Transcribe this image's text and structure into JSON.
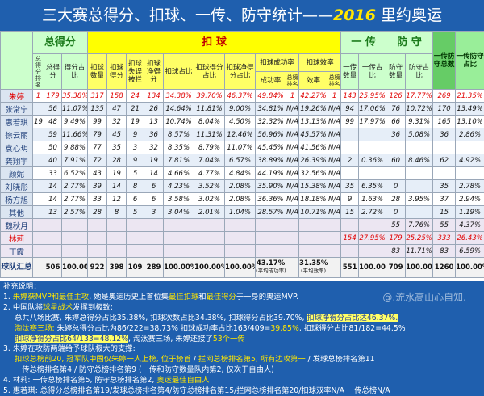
{
  "title": {
    "main": "三大赛总得分、扣球、一传、防守统计——",
    "year": "2016",
    "place": " 里约奥运"
  },
  "table": {
    "header": {
      "groups": [
        "总得分",
        "扣  球",
        "一 传",
        "防 守",
        "一传防守总数",
        "一传防守占比"
      ],
      "columns": [
        "总得分排名",
        "总得分",
        "得分占比",
        "扣球数量",
        "扣球得分",
        "扣球失误被拦",
        "扣球净得分",
        "扣球占比",
        "扣球得分占比",
        "扣球净得分占比",
        "扣球成功率",
        "扣球效率",
        "成功率",
        "总榜排名",
        "效率",
        "总榜排名",
        "一传数量",
        "一传占比",
        "防守数量",
        "防守占比"
      ]
    },
    "rows": [
      {
        "name": "朱婷",
        "color": "#e00000",
        "cells": [
          1,
          179,
          "35.38%",
          317,
          158,
          24,
          134,
          "34.38%",
          "39.70%",
          "46.37%",
          "49.84%",
          1,
          "42.27%",
          1,
          143,
          "25.95%",
          126,
          "17.77%",
          269,
          "21.35%"
        ]
      },
      {
        "name": "张常宁",
        "cells": [
          null,
          56,
          "11.07%",
          135,
          47,
          21,
          26,
          "14.64%",
          "11.81%",
          "9.00%",
          "34.81%",
          "N/A",
          "19.26%",
          "N/A",
          94,
          "17.06%",
          76,
          "10.72%",
          170,
          "13.49%"
        ]
      },
      {
        "name": "惠若琪",
        "cells": [
          19,
          48,
          "9.49%",
          99,
          32,
          19,
          13,
          "10.74%",
          "8.04%",
          "4.50%",
          "32.32%",
          "N/A",
          "13.13%",
          "N/A",
          99,
          "17.97%",
          66,
          "9.31%",
          165,
          "13.10%"
        ]
      },
      {
        "name": "徐云丽",
        "cells": [
          null,
          59,
          "11.66%",
          79,
          45,
          9,
          36,
          "8.57%",
          "11.31%",
          "12.46%",
          "56.96%",
          "N/A",
          "45.57%",
          "N/A",
          null,
          null,
          36,
          "5.08%",
          36,
          "2.86%"
        ]
      },
      {
        "name": "袁心玥",
        "cells": [
          null,
          50,
          "9.88%",
          77,
          35,
          3,
          32,
          "8.35%",
          "8.79%",
          "11.07%",
          "45.45%",
          "N/A",
          "41.56%",
          "N/A",
          null,
          null,
          null,
          null,
          null,
          null
        ]
      },
      {
        "name": "龚翔宇",
        "cells": [
          null,
          40,
          "7.91%",
          72,
          28,
          9,
          19,
          "7.81%",
          "7.04%",
          "6.57%",
          "38.89%",
          "N/A",
          "26.39%",
          "N/A",
          2,
          "0.36%",
          60,
          "8.46%",
          62,
          "4.92%"
        ]
      },
      {
        "name": "颜妮",
        "cells": [
          null,
          33,
          "6.52%",
          43,
          19,
          5,
          14,
          "4.66%",
          "4.77%",
          "4.84%",
          "44.19%",
          "N/A",
          "32.56%",
          "N/A",
          null,
          null,
          null,
          null,
          null,
          null
        ]
      },
      {
        "name": "刘晓彤",
        "cells": [
          null,
          14,
          "2.77%",
          39,
          14,
          8,
          6,
          "4.23%",
          "3.52%",
          "2.08%",
          "35.90%",
          "N/A",
          "15.38%",
          "N/A",
          35,
          "6.35%",
          0,
          null,
          35,
          "2.78%"
        ]
      },
      {
        "name": "杨方旭",
        "cells": [
          null,
          14,
          "2.77%",
          33,
          12,
          6,
          6,
          "3.58%",
          "3.02%",
          "2.08%",
          "36.36%",
          "N/A",
          "18.18%",
          "N/A",
          9,
          "1.63%",
          28,
          "3.95%",
          37,
          "2.94%"
        ]
      },
      {
        "name": "其他",
        "cells": [
          null,
          13,
          "2.57%",
          28,
          8,
          5,
          3,
          "3.04%",
          "2.01%",
          "1.04%",
          "28.57%",
          "N/A",
          "10.71%",
          "N/A",
          15,
          "2.72%",
          0,
          null,
          15,
          "1.19%"
        ]
      },
      {
        "name": "魏秋月",
        "cells": [
          null,
          null,
          null,
          null,
          null,
          null,
          null,
          null,
          null,
          null,
          null,
          null,
          null,
          null,
          null,
          null,
          55,
          "7.76%",
          55,
          "4.37%"
        ]
      },
      {
        "name": "林莉",
        "color": "#e00000",
        "cells": [
          null,
          null,
          null,
          null,
          null,
          null,
          null,
          null,
          null,
          null,
          null,
          null,
          null,
          null,
          154,
          "27.95%",
          179,
          "25.25%",
          333,
          "26.43%"
        ]
      },
      {
        "name": "丁霞",
        "cells": [
          null,
          null,
          null,
          null,
          null,
          null,
          null,
          null,
          null,
          null,
          null,
          null,
          null,
          null,
          null,
          null,
          83,
          "11.71%",
          83,
          "6.59%"
        ]
      }
    ],
    "total": {
      "name": "球队汇总",
      "cells": [
        null,
        506,
        "100.00%",
        922,
        398,
        109,
        289,
        "100.00%",
        "100.00%",
        "100.00%",
        "43.17%",
        null,
        "31.35%",
        null,
        551,
        "100.00%",
        709,
        "100.00%",
        1260,
        "100.00%"
      ],
      "subtexts": {
        "10": "(平均成功率)",
        "12": "(平均效率)"
      }
    }
  },
  "notes": {
    "watermark": "@.流水高山心自知.",
    "lines": [
      [
        {
          "text": "补充说明："
        }
      ],
      [
        {
          "text": "1. "
        },
        {
          "text": "朱婷获MVP和最佳主攻",
          "style": "yellow"
        },
        {
          "text": ", 她是奥运历史上首位集"
        },
        {
          "text": "最佳扣球",
          "style": "yellow"
        },
        {
          "text": "和"
        },
        {
          "text": "最佳得分",
          "style": "yellow"
        },
        {
          "text": "于一身的奥运MVP."
        }
      ],
      [
        {
          "text": "2. 中国队将"
        },
        {
          "text": "球星战术",
          "style": "yellow"
        },
        {
          "text": "发挥到极致:"
        }
      ],
      [
        {
          "text": "总共八场比赛, 朱婷总得分占比35.38%, 扣球次数占比34.38%, 扣球得分占比39.70%, "
        },
        {
          "text": "扣球净得分占比达46.37%.",
          "style": "boxed"
        }
      ],
      [
        {
          "text": "淘汰赛三场:",
          "style": "yellow"
        },
        {
          "text": " 朱婷总得分占比为86/222=38.73% 扣球成功率占比163/409="
        },
        {
          "text": "39.85%",
          "style": "yellow"
        },
        {
          "text": ", 扣球得分占比81/182=44.5%"
        }
      ],
      [
        {
          "text": "扣球净得分占比64/133=48.12%",
          "style": "boxed"
        },
        {
          "text": ", 淘汰赛三场, 朱婷还接了"
        },
        {
          "text": "53个一传",
          "style": "yellow"
        }
      ],
      [
        {
          "text": "3. 朱婷在攻防两端给予球队极大的支撑:"
        }
      ],
      [
        {
          "text": "扣球总榜前20, 冠军队中国仅朱婷一人上榜, 位于榜首",
          "style": "yellow"
        },
        {
          "text": " / "
        },
        {
          "text": "拦网总榜排名第5, 所有边攻第一",
          "style": "yellow"
        },
        {
          "text": " / 发球总榜排名第11"
        }
      ],
      [
        {
          "text": "一传总榜排名第4 / 防守总榜排名第9 (一传和防守数量队内第2, 仅次于自由人)"
        }
      ],
      [
        {
          "text": "4. 林莉: 一传总榜排名第5, 防守总榜排名第2, "
        },
        {
          "text": "奥运最佳自由人",
          "style": "yellow"
        }
      ],
      [
        {
          "text": "5. 惠若琪: 总得分总榜排名第19/发球总榜排名第4/防守总榜排名第15/拦网总榜排名第20/扣球双率N/A 一传总榜N/A"
        }
      ]
    ]
  }
}
